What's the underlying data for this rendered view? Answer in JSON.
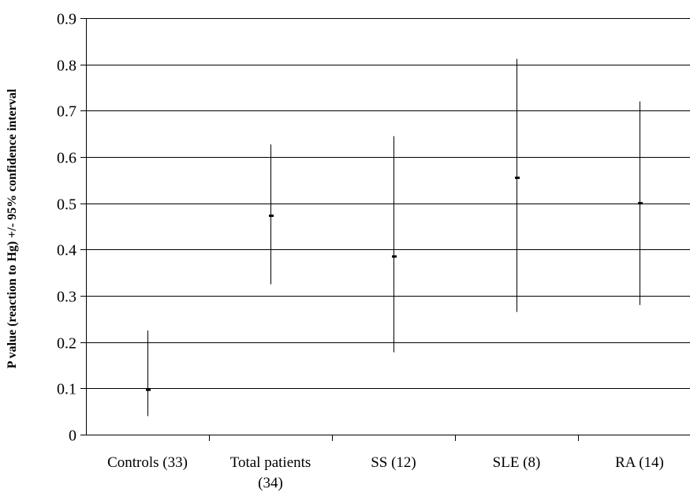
{
  "chart_data": {
    "type": "error-bar",
    "title": "",
    "xlabel": "",
    "ylabel": "P value (reaction to Hg) +/- 95% confidence interval",
    "ylim": [
      0,
      0.9
    ],
    "yticks": [
      "0",
      "0.1",
      "0.2",
      "0.3",
      "0.4",
      "0.5",
      "0.6",
      "0.7",
      "0.8",
      "0.9"
    ],
    "grid": "horizontal",
    "legend": "none",
    "categories": [
      [
        "Controls (33)"
      ],
      [
        "Total patients",
        "(34)"
      ],
      [
        "SS (12)"
      ],
      [
        "SLE (8)"
      ],
      [
        "RA (14)"
      ]
    ],
    "values": [
      0.097,
      0.473,
      0.385,
      0.555,
      0.5
    ],
    "ci_low": [
      0.04,
      0.325,
      0.178,
      0.265,
      0.28
    ],
    "ci_high": [
      0.225,
      0.627,
      0.645,
      0.812,
      0.72
    ],
    "colors": {
      "marks": "#000000",
      "grid": "#000000",
      "background": "#ffffff"
    }
  }
}
